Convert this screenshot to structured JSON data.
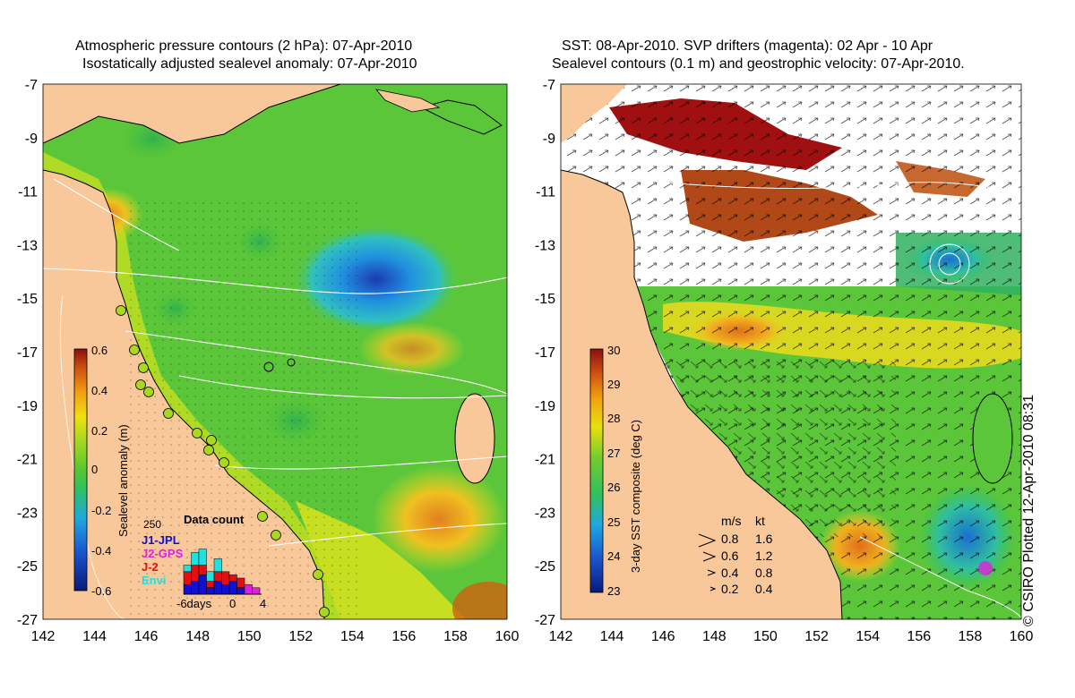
{
  "left_panel": {
    "title_line1": "Atmospheric pressure contours (2 hPa): 07-Apr-2010",
    "title_line2": "Isostatically adjusted sealevel anomaly: 07-Apr-2010",
    "colorbar": {
      "label": "Sealevel anomaly (m)",
      "ticks": [
        "0.6",
        "0.4",
        "0.2",
        "0",
        "-0.2",
        "-0.4",
        "-0.6"
      ]
    },
    "data_count": {
      "title": "Data count",
      "max_label": "250",
      "legend": [
        {
          "label": "J1-JPL",
          "color": "#1010d0"
        },
        {
          "label": "J2-GPS",
          "color": "#e020e0"
        },
        {
          "label": "J-2",
          "color": "#e01010"
        },
        {
          "label": "Envi",
          "color": "#20e0e0"
        }
      ],
      "axis_labels": [
        "-6days",
        "0",
        "4"
      ]
    }
  },
  "right_panel": {
    "title_line1": "SST: 08-Apr-2010. SVP drifters (magenta): 02 Apr - 10 Apr",
    "title_line2": "Sealevel contours (0.1 m) and geostrophic velocity: 07-Apr-2010.",
    "colorbar": {
      "label": "3-day SST composite (deg C)",
      "ticks": [
        "30",
        "29",
        "28",
        "27",
        "26",
        "25",
        "24",
        "23"
      ]
    },
    "velocity_legend": {
      "header_ms": "m/s",
      "header_kt": "kt",
      "rows": [
        {
          "ms": "0.8",
          "kt": "1.6"
        },
        {
          "ms": "0.6",
          "kt": "1.2"
        },
        {
          "ms": "0.4",
          "kt": "0.8"
        },
        {
          "ms": "0.2",
          "kt": "0.4"
        }
      ]
    }
  },
  "axes": {
    "lat_ticks": [
      "-7",
      "-9",
      "-11",
      "-13",
      "-15",
      "-17",
      "-19",
      "-21",
      "-23",
      "-25",
      "-27"
    ],
    "lon_ticks": [
      "142",
      "144",
      "146",
      "148",
      "150",
      "152",
      "154",
      "156",
      "158",
      "160"
    ]
  },
  "credit": "© CSIRO Plotted 12-Apr-2010 08:31",
  "colors": {
    "land": "#f8c89a",
    "ocean_green": "#66cc33",
    "ocean_yellow": "#d8e020",
    "ocean_blue": "#2aa0e0",
    "sst_red": "#a01010",
    "sst_orange": "#d0701a"
  }
}
